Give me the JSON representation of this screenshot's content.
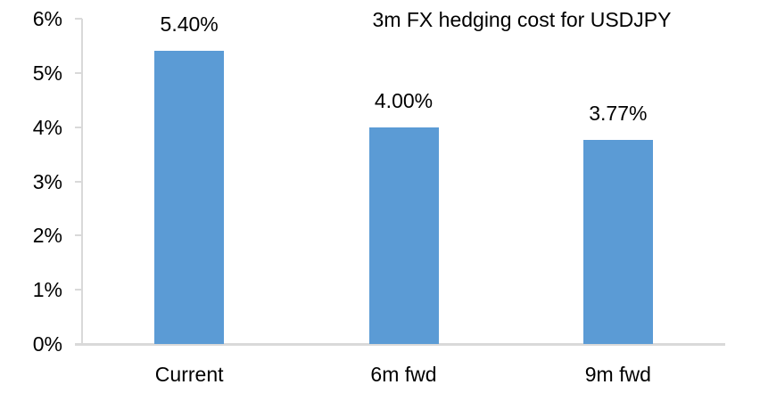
{
  "chart_data": {
    "type": "bar",
    "title": "3m FX hedging cost for USDJPY",
    "categories": [
      "Current",
      "6m fwd",
      "9m fwd"
    ],
    "values": [
      5.4,
      4.0,
      3.77
    ],
    "value_labels": [
      "5.40%",
      "4.00%",
      "3.77%"
    ],
    "xlabel": "",
    "ylabel": "",
    "ylim": [
      0,
      6
    ],
    "yticks": [
      0,
      1,
      2,
      3,
      4,
      5,
      6
    ],
    "ytick_labels": [
      "0%",
      "1%",
      "2%",
      "3%",
      "4%",
      "5%",
      "6%"
    ],
    "grid": false,
    "legend": false,
    "colors": {
      "bar": "#5B9BD5",
      "axis": "#D9D9D9",
      "text": "#000000",
      "background": "#FFFFFF"
    }
  }
}
